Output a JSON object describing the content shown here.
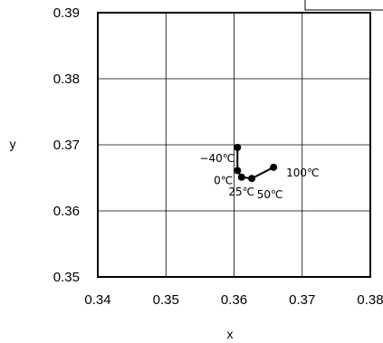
{
  "chart_data": {
    "type": "line",
    "xlabel": "x",
    "ylabel": "y",
    "xlim": [
      0.34,
      0.38
    ],
    "ylim": [
      0.35,
      0.39
    ],
    "grid": true,
    "x_ticks": [
      "0.34",
      "0.35",
      "0.36",
      "0.37",
      "0.38"
    ],
    "y_ticks": [
      "0.35",
      "0.36",
      "0.37",
      "0.38",
      "0.39"
    ],
    "series": [
      {
        "x": [
          0.3605,
          0.3605,
          0.3611,
          0.3626,
          0.3658
        ],
        "y": [
          0.3696,
          0.3661,
          0.3651,
          0.3649,
          0.3666
        ]
      }
    ],
    "annotations": [
      {
        "text": "−40℃",
        "x": 0.3605,
        "y": 0.3696
      },
      {
        "text": "0℃",
        "x": 0.3605,
        "y": 0.3661
      },
      {
        "text": "25℃",
        "x": 0.3611,
        "y": 0.3651
      },
      {
        "text": "50℃",
        "x": 0.3626,
        "y": 0.3649
      },
      {
        "text": "100℃",
        "x": 0.3658,
        "y": 0.3666
      }
    ]
  }
}
